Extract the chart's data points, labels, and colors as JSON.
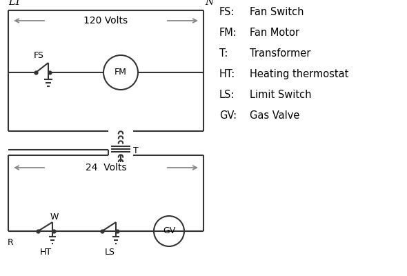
{
  "bg_color": "#ffffff",
  "line_color": "#333333",
  "gray_color": "#888888",
  "text_color": "#000000",
  "legend_items": [
    [
      "FS:",
      "Fan Switch"
    ],
    [
      "FM:",
      "Fan Motor"
    ],
    [
      "T:",
      "Transformer"
    ],
    [
      "HT:",
      "Heating thermostat"
    ],
    [
      "LS:",
      "Limit Switch"
    ],
    [
      "GV:",
      "Gas Valve"
    ]
  ],
  "figsize": [
    5.9,
    4.0
  ],
  "dpi": 100
}
